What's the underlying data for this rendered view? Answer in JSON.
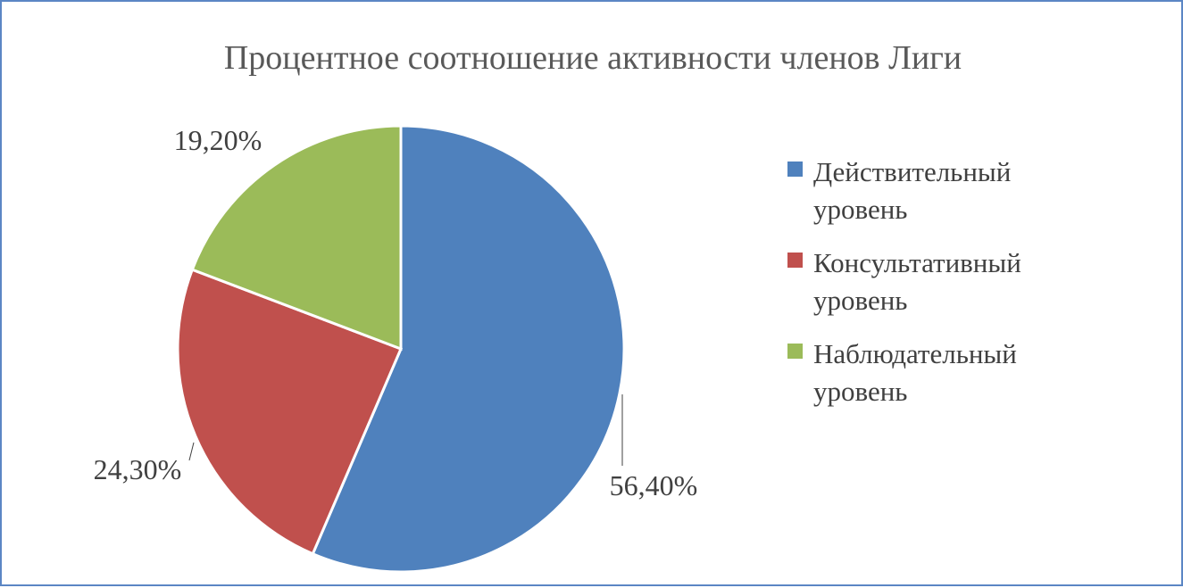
{
  "chart_data": {
    "type": "pie",
    "title": "Процентное соотношение активности членов Лиги",
    "legend_position": "right",
    "slices": [
      {
        "label_lines": [
          "Действительный",
          "уровень"
        ],
        "value": 56.4,
        "value_label": "56,40%",
        "color": "#4f81bd"
      },
      {
        "label_lines": [
          "Консультативный",
          "уровень"
        ],
        "value": 24.3,
        "value_label": "24,30%",
        "color": "#c0504d"
      },
      {
        "label_lines": [
          "Наблюдательный",
          "уровень"
        ],
        "value": 19.2,
        "value_label": "19,20%",
        "color": "#9bbb59"
      }
    ]
  },
  "colors": {
    "frame_border": "#5b86c4",
    "leader_line": "#404040"
  }
}
